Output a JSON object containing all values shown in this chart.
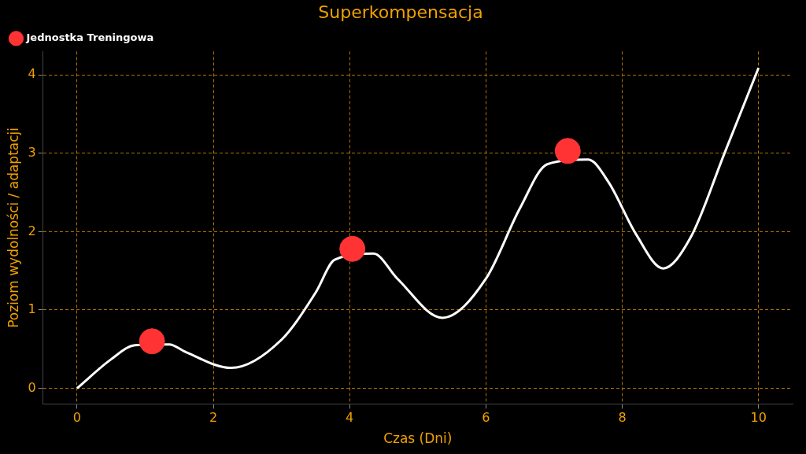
{
  "chart_data": {
    "type": "line",
    "title": "Superkompensacja",
    "xlabel": "Czas (Dni)",
    "ylabel": "Poziom wydolności / adaptacji",
    "xlim": [
      -0.5,
      10.5
    ],
    "xticks": [
      0,
      2,
      4,
      6,
      8,
      10
    ],
    "ylim": [
      -0.2,
      4.3
    ],
    "yticks": [
      0,
      1,
      2,
      3,
      4
    ],
    "grid": true,
    "legend": "top left",
    "series": [
      {
        "color": "#ffffff",
        "marker": "none",
        "line_style": "solid",
        "x": [
          0,
          0.5,
          0.85,
          1.35,
          1.6,
          2.26,
          3,
          3.5,
          3.78,
          4.35,
          4.7,
          5.36,
          6,
          6.5,
          6.9,
          7.5,
          7.8,
          8.2,
          8.6,
          9,
          9.5,
          10
        ],
        "values": [
          0,
          0.37,
          0.55,
          0.56,
          0.46,
          0.26,
          0.62,
          1.22,
          1.64,
          1.72,
          1.4,
          0.9,
          1.4,
          2.3,
          2.86,
          2.92,
          2.63,
          1.97,
          1.53,
          1.92,
          3.0,
          4.09
        ]
      },
      {
        "type": "scatter",
        "name": "Jednostka Treningowa",
        "color": "#ff3333",
        "marker": "circle",
        "x": [
          1.1,
          4.04,
          7.2
        ],
        "values": [
          0.6,
          1.78,
          3.03
        ]
      }
    ]
  }
}
